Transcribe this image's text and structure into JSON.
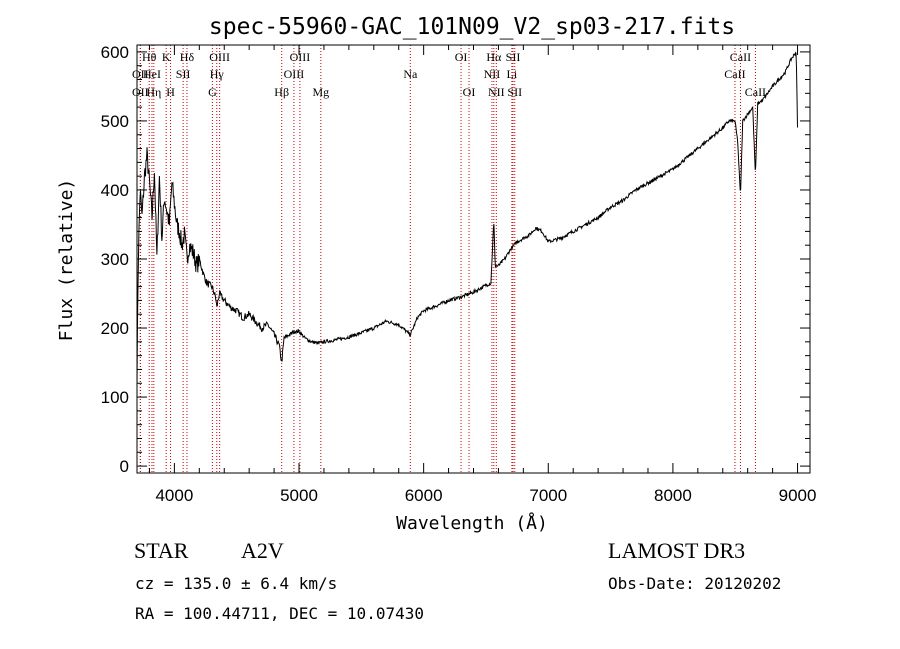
{
  "title": "spec-55960-GAC_101N09_V2_sp03-217.fits",
  "footer": {
    "class_label": "STAR",
    "subclass": "A2V",
    "survey": "LAMOST DR3",
    "cz": "cz = 135.0 ± 6.4 km/s",
    "obs_date": "Obs-Date: 20120202",
    "coords": "RA = 100.44711, DEC =  10.07430"
  },
  "chart_data": {
    "type": "line",
    "title": "spec-55960-GAC_101N09_V2_sp03-217.fits",
    "xlabel": "Wavelength (Å)",
    "ylabel": "Flux (relative)",
    "xlim": [
      3700,
      9100
    ],
    "ylim": [
      -10,
      610
    ],
    "xticks": [
      4000,
      5000,
      6000,
      7000,
      8000,
      9000
    ],
    "yticks": [
      0,
      100,
      200,
      300,
      400,
      500,
      600
    ],
    "colors": {
      "line": "#000000",
      "marker": "#cc0000",
      "axis": "#000000"
    },
    "series": [
      {
        "name": "flux",
        "x": [
          3700,
          3710,
          3725,
          3740,
          3760,
          3780,
          3800,
          3820,
          3840,
          3860,
          3880,
          3900,
          3920,
          3940,
          3960,
          3980,
          4000,
          4020,
          4040,
          4060,
          4080,
          4101,
          4120,
          4150,
          4180,
          4200,
          4230,
          4260,
          4300,
          4330,
          4340,
          4360,
          4400,
          4450,
          4500,
          4550,
          4600,
          4650,
          4700,
          4750,
          4800,
          4840,
          4861,
          4880,
          4920,
          4960,
          5000,
          5050,
          5100,
          5150,
          5200,
          5300,
          5400,
          5500,
          5600,
          5700,
          5800,
          5893,
          5950,
          6000,
          6100,
          6200,
          6300,
          6400,
          6500,
          6540,
          6563,
          6575,
          6600,
          6650,
          6700,
          6750,
          6800,
          6850,
          6900,
          6950,
          7000,
          7100,
          7200,
          7300,
          7400,
          7500,
          7600,
          7700,
          7800,
          7900,
          8000,
          8100,
          8200,
          8300,
          8400,
          8450,
          8498,
          8520,
          8542,
          8560,
          8600,
          8640,
          8662,
          8680,
          8720,
          8800,
          8900,
          8950,
          8990,
          9000
        ],
        "values": [
          130,
          300,
          400,
          360,
          420,
          450,
          410,
          360,
          430,
          300,
          420,
          330,
          390,
          370,
          350,
          410,
          380,
          350,
          340,
          320,
          335,
          300,
          320,
          310,
          290,
          300,
          280,
          265,
          260,
          245,
          230,
          250,
          240,
          230,
          225,
          215,
          220,
          210,
          200,
          205,
          190,
          175,
          150,
          185,
          190,
          195,
          195,
          185,
          180,
          178,
          180,
          183,
          187,
          193,
          200,
          210,
          205,
          190,
          215,
          225,
          232,
          240,
          245,
          252,
          262,
          265,
          355,
          290,
          290,
          300,
          315,
          325,
          330,
          335,
          345,
          340,
          325,
          330,
          340,
          350,
          360,
          375,
          385,
          400,
          410,
          420,
          430,
          445,
          460,
          475,
          490,
          500,
          500,
          470,
          390,
          500,
          510,
          520,
          420,
          525,
          530,
          550,
          570,
          590,
          600,
          490
        ]
      }
    ],
    "lines": [
      {
        "label": "OII",
        "wl": 3727,
        "row": 3
      },
      {
        "label": "OII",
        "wl": 3727,
        "row": 2
      },
      {
        "label": "Hθ",
        "wl": 3798,
        "row": 1
      },
      {
        "label": "HeI",
        "wl": 3820,
        "row": 2
      },
      {
        "label": "Hη",
        "wl": 3835,
        "row": 3
      },
      {
        "label": "K",
        "wl": 3934,
        "row": 1
      },
      {
        "label": "SII",
        "wl": 4070,
        "row": 2
      },
      {
        "label": "H",
        "wl": 3969,
        "row": 3
      },
      {
        "label": "Hδ",
        "wl": 4101,
        "row": 1
      },
      {
        "label": "G",
        "wl": 4305,
        "row": 3
      },
      {
        "label": "Hγ",
        "wl": 4340,
        "row": 2
      },
      {
        "label": "OIII",
        "wl": 4363,
        "row": 1
      },
      {
        "label": "Hβ",
        "wl": 4861,
        "row": 3
      },
      {
        "label": "OIII",
        "wl": 4959,
        "row": 2
      },
      {
        "label": "OIII",
        "wl": 5007,
        "row": 1
      },
      {
        "label": "Mg",
        "wl": 5175,
        "row": 3
      },
      {
        "label": "Na",
        "wl": 5893,
        "row": 2
      },
      {
        "label": "OI",
        "wl": 6300,
        "row": 1
      },
      {
        "label": "OI",
        "wl": 6364,
        "row": 3
      },
      {
        "label": "NII",
        "wl": 6548,
        "row": 2
      },
      {
        "label": "Hα",
        "wl": 6563,
        "row": 1
      },
      {
        "label": "NII",
        "wl": 6583,
        "row": 3
      },
      {
        "label": "SII",
        "wl": 6717,
        "row": 1
      },
      {
        "label": "Li",
        "wl": 6708,
        "row": 2
      },
      {
        "label": "SII",
        "wl": 6731,
        "row": 3
      },
      {
        "label": "CaII",
        "wl": 8498,
        "row": 2
      },
      {
        "label": "CaII",
        "wl": 8542,
        "row": 1
      },
      {
        "label": "CaII",
        "wl": 8662,
        "row": 3
      }
    ]
  }
}
